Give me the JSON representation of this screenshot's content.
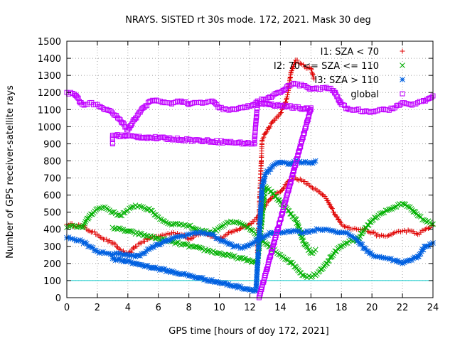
{
  "chart_data": {
    "type": "scatter",
    "title": "NRAYS. SISTED rt 30s mode. 172, 2021. Mask 30 deg",
    "xlabel": "GPS time [hours of doy 172, 2021]",
    "ylabel": "Number of GPS receiver-satellite rays",
    "xlim": [
      0,
      24
    ],
    "ylim": [
      0,
      1500
    ],
    "x_ticks": [
      "0",
      "2",
      "4",
      "6",
      "8",
      "10",
      "12",
      "14",
      "16",
      "18",
      "20",
      "22",
      "24"
    ],
    "y_ticks": [
      "0",
      "100",
      "200",
      "300",
      "400",
      "500",
      "600",
      "700",
      "800",
      "900",
      "1000",
      "1100",
      "1200",
      "1300",
      "1400",
      "1500"
    ],
    "grid": true,
    "legend_position": "top-right",
    "reference_line": {
      "y": 100,
      "color": "#00c8c8"
    },
    "series": [
      {
        "name": "I1: SZA < 70",
        "marker": "+",
        "color": "#e00000",
        "points": [
          [
            0,
            430
          ],
          [
            1,
            420
          ],
          [
            1.5,
            390
          ],
          [
            2,
            370
          ],
          [
            2.5,
            340
          ],
          [
            3,
            320
          ],
          [
            3.5,
            280
          ],
          [
            4,
            250
          ],
          [
            4.5,
            300
          ],
          [
            5,
            330
          ],
          [
            5.5,
            350
          ],
          [
            6,
            360
          ],
          [
            6.5,
            370
          ],
          [
            7,
            380
          ],
          [
            7.5,
            370
          ],
          [
            8,
            340
          ],
          [
            8.5,
            370
          ],
          [
            9,
            380
          ],
          [
            9.5,
            360
          ],
          [
            10,
            340
          ],
          [
            10.5,
            370
          ],
          [
            11,
            390
          ],
          [
            11.5,
            410
          ],
          [
            12,
            430
          ],
          [
            12.5,
            470
          ],
          [
            13,
            540
          ],
          [
            13.5,
            590
          ],
          [
            14,
            620
          ],
          [
            14.5,
            680
          ],
          [
            15,
            700
          ],
          [
            15.5,
            680
          ],
          [
            16,
            650
          ],
          [
            16.5,
            620
          ],
          [
            17,
            580
          ],
          [
            17.5,
            500
          ],
          [
            18,
            430
          ],
          [
            18.5,
            410
          ],
          [
            19,
            400
          ],
          [
            19.5,
            400
          ],
          [
            20,
            380
          ],
          [
            20.5,
            360
          ],
          [
            21,
            360
          ],
          [
            21.5,
            380
          ],
          [
            22,
            390
          ],
          [
            22.5,
            390
          ],
          [
            23,
            370
          ],
          [
            23.5,
            400
          ],
          [
            24,
            420
          ]
        ]
      },
      {
        "name": "I1: SZA < 70",
        "marker": "+",
        "color": "#e00000",
        "points": [
          [
            12.5,
            265
          ],
          [
            12.8,
            920
          ],
          [
            13,
            960
          ],
          [
            13.5,
            1030
          ],
          [
            14,
            1080
          ],
          [
            14.3,
            1130
          ],
          [
            14.5,
            1200
          ],
          [
            14.7,
            1320
          ],
          [
            15,
            1390
          ],
          [
            15.3,
            1370
          ],
          [
            15.6,
            1350
          ],
          [
            16,
            1340
          ],
          [
            16.2,
            1280
          ]
        ]
      },
      {
        "name": "I2: 70 <= SZA <= 110",
        "marker": "x",
        "color": "#00b000",
        "points": [
          [
            0,
            410
          ],
          [
            0.5,
            420
          ],
          [
            1,
            410
          ],
          [
            1.5,
            480
          ],
          [
            2,
            520
          ],
          [
            2.5,
            530
          ],
          [
            3,
            500
          ],
          [
            3.5,
            480
          ],
          [
            4,
            510
          ],
          [
            4.5,
            540
          ],
          [
            5,
            530
          ],
          [
            5.5,
            510
          ],
          [
            6,
            470
          ],
          [
            6.5,
            440
          ],
          [
            7,
            430
          ],
          [
            7.5,
            430
          ],
          [
            8,
            420
          ],
          [
            8.5,
            400
          ],
          [
            9,
            390
          ],
          [
            9.5,
            380
          ],
          [
            10,
            410
          ],
          [
            10.5,
            440
          ],
          [
            11,
            440
          ],
          [
            11.5,
            430
          ],
          [
            12,
            400
          ],
          [
            12.5,
            360
          ],
          [
            13,
            320
          ],
          [
            13.5,
            280
          ],
          [
            14,
            250
          ],
          [
            14.5,
            220
          ],
          [
            15,
            180
          ],
          [
            15.5,
            130
          ],
          [
            16,
            120
          ],
          [
            16.5,
            150
          ],
          [
            17,
            200
          ],
          [
            17.5,
            260
          ],
          [
            18,
            300
          ],
          [
            18.5,
            330
          ],
          [
            19,
            330
          ],
          [
            19.5,
            400
          ],
          [
            20,
            450
          ],
          [
            20.5,
            490
          ],
          [
            21,
            510
          ],
          [
            21.5,
            530
          ],
          [
            22,
            550
          ],
          [
            22.5,
            530
          ],
          [
            23,
            480
          ],
          [
            23.5,
            450
          ],
          [
            24,
            430
          ]
        ]
      },
      {
        "name": "I2: 70 <= SZA <= 110",
        "marker": "x",
        "color": "#00b000",
        "points": [
          [
            3,
            410
          ],
          [
            12.3,
            210
          ],
          [
            12.5,
            200
          ],
          [
            13,
            650
          ],
          [
            13.5,
            610
          ],
          [
            14,
            560
          ],
          [
            14.5,
            510
          ],
          [
            15,
            460
          ],
          [
            15.5,
            330
          ],
          [
            16,
            260
          ],
          [
            16.3,
            280
          ]
        ]
      },
      {
        "name": "I3: SZA > 110",
        "marker": "*",
        "color": "#0060e0",
        "points": [
          [
            0,
            350
          ],
          [
            0.5,
            340
          ],
          [
            1,
            330
          ],
          [
            1.5,
            300
          ],
          [
            2,
            270
          ],
          [
            2.5,
            260
          ],
          [
            3,
            250
          ],
          [
            3.5,
            260
          ],
          [
            4,
            250
          ],
          [
            4.5,
            240
          ],
          [
            5,
            260
          ],
          [
            5.5,
            290
          ],
          [
            6,
            310
          ],
          [
            6.5,
            330
          ],
          [
            7,
            350
          ],
          [
            7.5,
            360
          ],
          [
            8,
            370
          ],
          [
            8.5,
            380
          ],
          [
            9,
            380
          ],
          [
            9.5,
            370
          ],
          [
            10,
            340
          ],
          [
            10.5,
            320
          ],
          [
            11,
            300
          ],
          [
            11.5,
            290
          ],
          [
            12,
            310
          ],
          [
            12.5,
            340
          ],
          [
            13,
            360
          ],
          [
            13.5,
            380
          ],
          [
            14,
            380
          ],
          [
            14.5,
            390
          ],
          [
            15,
            390
          ],
          [
            15.5,
            380
          ],
          [
            16,
            390
          ],
          [
            16.5,
            400
          ],
          [
            17,
            400
          ],
          [
            17.5,
            390
          ],
          [
            18,
            380
          ],
          [
            18.5,
            370
          ],
          [
            19,
            340
          ],
          [
            19.5,
            290
          ],
          [
            20,
            250
          ],
          [
            20.5,
            240
          ],
          [
            21,
            230
          ],
          [
            21.5,
            220
          ],
          [
            22,
            200
          ],
          [
            22.5,
            220
          ],
          [
            23,
            240
          ],
          [
            23.5,
            300
          ],
          [
            24,
            320
          ]
        ]
      },
      {
        "name": "I3: SZA > 110",
        "marker": "*",
        "color": "#0060e0",
        "points": [
          [
            3,
            230
          ],
          [
            12.4,
            40
          ],
          [
            12.8,
            650
          ],
          [
            13,
            720
          ],
          [
            13.5,
            770
          ],
          [
            14,
            790
          ],
          [
            14.5,
            780
          ],
          [
            15,
            800
          ],
          [
            15.5,
            790
          ],
          [
            16,
            790
          ],
          [
            16.3,
            800
          ]
        ]
      },
      {
        "name": "global",
        "marker": "square",
        "color": "#c000ff",
        "points": [
          [
            0,
            1200
          ],
          [
            0.5,
            1190
          ],
          [
            1,
            1130
          ],
          [
            1.5,
            1140
          ],
          [
            2,
            1130
          ],
          [
            2.5,
            1100
          ],
          [
            3,
            1080
          ],
          [
            3.5,
            1040
          ],
          [
            4,
            980
          ],
          [
            4.5,
            1050
          ],
          [
            5,
            1110
          ],
          [
            5.5,
            1150
          ],
          [
            6,
            1150
          ],
          [
            6.5,
            1140
          ],
          [
            7,
            1140
          ],
          [
            7.5,
            1150
          ],
          [
            8,
            1130
          ],
          [
            8.5,
            1140
          ],
          [
            9,
            1140
          ],
          [
            9.5,
            1150
          ],
          [
            10,
            1110
          ],
          [
            10.5,
            1100
          ],
          [
            11,
            1100
          ],
          [
            11.5,
            1110
          ],
          [
            12,
            1120
          ],
          [
            12.5,
            1150
          ],
          [
            13,
            1160
          ],
          [
            13.5,
            1180
          ],
          [
            14,
            1200
          ],
          [
            14.5,
            1240
          ],
          [
            15,
            1250
          ],
          [
            15.5,
            1240
          ],
          [
            16,
            1220
          ],
          [
            16.5,
            1220
          ],
          [
            17,
            1230
          ],
          [
            17.5,
            1210
          ],
          [
            18,
            1130
          ],
          [
            18.5,
            1100
          ],
          [
            19,
            1100
          ],
          [
            19.5,
            1090
          ],
          [
            20,
            1090
          ],
          [
            20.5,
            1100
          ],
          [
            21,
            1100
          ],
          [
            21.5,
            1110
          ],
          [
            22,
            1140
          ],
          [
            22.5,
            1130
          ],
          [
            23,
            1140
          ],
          [
            23.5,
            1150
          ],
          [
            24,
            1180
          ]
        ]
      },
      {
        "name": "global",
        "marker": "square",
        "color": "#c000ff",
        "points": [
          [
            3,
            900
          ],
          [
            3,
            950
          ],
          [
            12.3,
            900
          ],
          [
            12.3,
            920
          ],
          [
            12.5,
            1140
          ],
          [
            16,
            1100
          ],
          [
            16,
            1110
          ],
          [
            12.6,
            0
          ]
        ]
      }
    ],
    "legend": [
      {
        "label": "I1: SZA < 70",
        "marker": "+",
        "color": "#e00000"
      },
      {
        "label": "I2: 70 <= SZA <= 110",
        "marker": "x",
        "color": "#00b000"
      },
      {
        "label": "I3: SZA > 110",
        "marker": "*",
        "color": "#0060e0"
      },
      {
        "label": "global",
        "marker": "square",
        "color": "#c000ff"
      }
    ]
  }
}
